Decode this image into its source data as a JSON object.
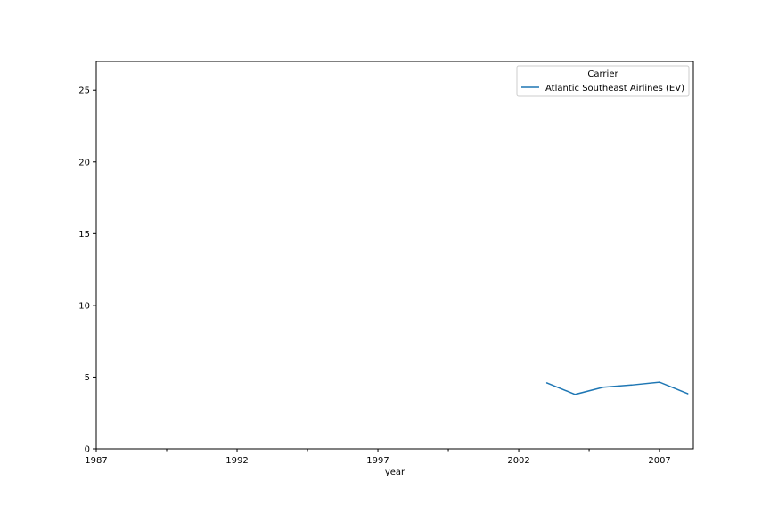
{
  "chart_data": {
    "type": "line",
    "xlabel": "year",
    "ylabel": "",
    "xlim": [
      1987,
      2008.2
    ],
    "ylim": [
      0,
      27
    ],
    "x_major_ticks": [
      1987,
      1992,
      1997,
      2002,
      2007
    ],
    "x_minor_ticks": [
      1989.5,
      1994.5,
      1999.5,
      2004.5
    ],
    "y_ticks": [
      0,
      5,
      10,
      15,
      20,
      25
    ],
    "grid": false,
    "legend": {
      "title": "Carrier",
      "placement": "top-right"
    },
    "series": [
      {
        "name": "Atlantic Southeast Airlines (EV)",
        "color": "#1f77b4",
        "x": [
          2003,
          2004,
          2005,
          2006,
          2007,
          2008
        ],
        "y": [
          4.6,
          3.8,
          4.3,
          4.45,
          4.65,
          3.85
        ]
      }
    ]
  }
}
